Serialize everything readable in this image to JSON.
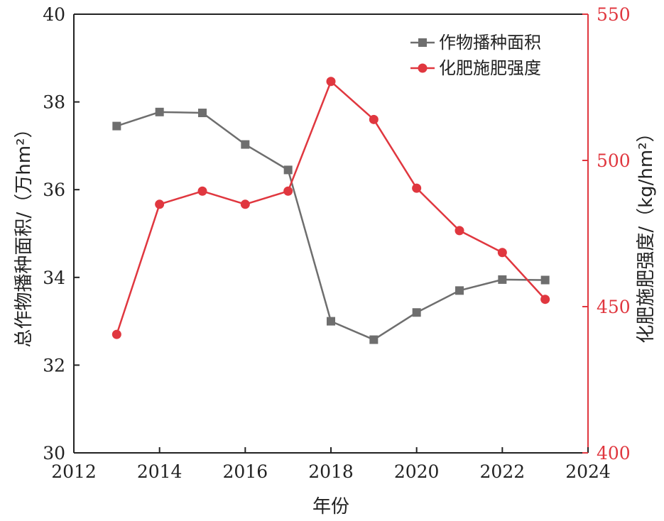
{
  "chart_data": {
    "type": "line",
    "xlabel": "年份",
    "ylabel_left": "总作物播种面积/（万hm²）",
    "ylabel_right": "化肥施肥强度/（kg/hm²）",
    "x_ticks": [
      2012,
      2014,
      2016,
      2018,
      2020,
      2022,
      2024
    ],
    "xlim": [
      2012,
      2024
    ],
    "ylim_left": [
      30,
      40
    ],
    "y_ticks_left": [
      30,
      32,
      34,
      36,
      38,
      40
    ],
    "ylim_right": [
      400,
      550
    ],
    "y_ticks_right": [
      400,
      450,
      500,
      550
    ],
    "grid": false,
    "legend_position": "top-right",
    "x": [
      2013,
      2014,
      2015,
      2016,
      2017,
      2018,
      2019,
      2020,
      2021,
      2022,
      2023
    ],
    "series": [
      {
        "name": "作物播种面积",
        "axis": "left",
        "marker": "square",
        "color": "#6e6e6e",
        "values": [
          37.45,
          37.77,
          37.75,
          37.03,
          36.45,
          33.0,
          32.58,
          33.2,
          33.7,
          33.95,
          33.94
        ]
      },
      {
        "name": "化肥施肥强度",
        "axis": "right",
        "marker": "circle",
        "color": "#e0373f",
        "values": [
          440.5,
          485.0,
          489.5,
          485.0,
          489.5,
          527.0,
          514.0,
          490.5,
          476.0,
          468.5,
          452.5
        ]
      }
    ],
    "colors": {
      "axis_left": "#222222",
      "axis_right": "#e0373f"
    }
  }
}
